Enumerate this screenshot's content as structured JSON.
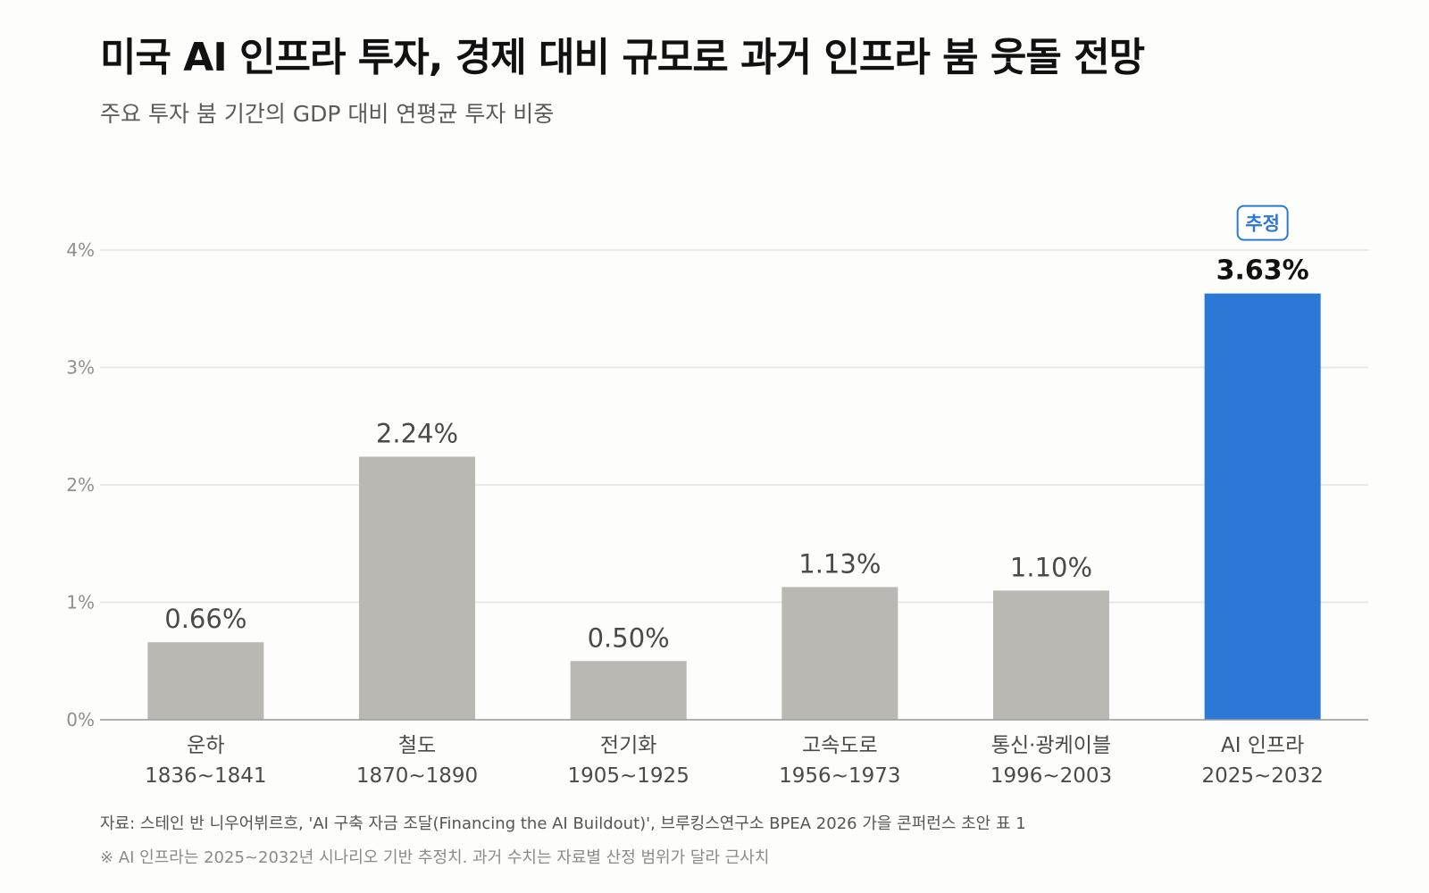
{
  "header": {
    "title": "미국 AI 인프라 투자, 경제 대비 규모로 과거 인프라 붐 웃돌 전망",
    "subtitle": "주요 투자 붐 기간의 GDP 대비 연평균 투자 비중"
  },
  "chart_data": {
    "type": "bar",
    "title": "",
    "xlabel": "",
    "ylabel": "",
    "ylim": [
      0,
      4
    ],
    "yticks": [
      "0%",
      "1%",
      "2%",
      "3%",
      "4%"
    ],
    "grid": true,
    "categories": [
      {
        "name": "운하",
        "period": "1836~1841"
      },
      {
        "name": "철도",
        "period": "1870~1890"
      },
      {
        "name": "전기화",
        "period": "1905~1925"
      },
      {
        "name": "고속도로",
        "period": "1956~1973"
      },
      {
        "name": "통신·광케이블",
        "period": "1996~2003"
      },
      {
        "name": "AI 인프라",
        "period": "2025~2032"
      }
    ],
    "values": [
      0.66,
      2.24,
      0.5,
      1.13,
      1.1,
      3.63
    ],
    "value_labels": [
      "0.66%",
      "2.24%",
      "0.50%",
      "1.13%",
      "1.10%",
      "3.63%"
    ],
    "highlight_index": 5,
    "highlight_badge": "추정",
    "colors": {
      "default_bar": "#b9b8b3",
      "highlight_bar": "#2b78d6",
      "grid": "#e4e4e1",
      "axis": "#9a9a96",
      "tick_text": "#8f8f8f",
      "label_text": "#4a4a4a"
    }
  },
  "footer": {
    "source": "자료: 스테인 반 니우어뷔르흐, 'AI 구축 자금 조달(Financing the AI Buildout)', 브루킹스연구소 BPEA 2026 가을 콘퍼런스 초안 표 1",
    "note": "※ AI 인프라는 2025~2032년 시나리오 기반 추정치. 과거 수치는 자료별 산정 범위가 달라 근사치"
  }
}
